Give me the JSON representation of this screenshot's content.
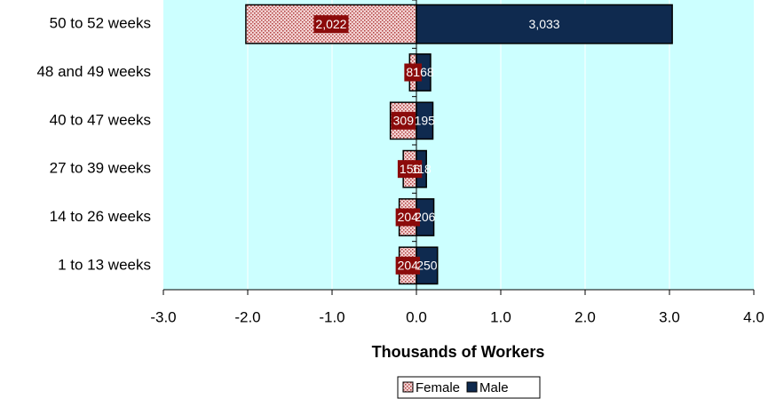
{
  "chart_data": {
    "type": "bar",
    "orientation": "horizontal",
    "categories": [
      "50 to 52 weeks",
      "48 and 49 weeks",
      "40 to 47 weeks",
      "27 to 39 weeks",
      "14 to 26 weeks",
      "1 to 13 weeks"
    ],
    "series": [
      {
        "name": "Female",
        "color": "#f3d3d3",
        "values": [
          -2.022,
          -0.081,
          -0.309,
          -0.156,
          -0.204,
          -0.204
        ],
        "value_labels": [
          "2,022",
          "81",
          "309",
          "156",
          "204",
          "204"
        ]
      },
      {
        "name": "Male",
        "color": "#0f2a4f",
        "values": [
          3.033,
          0.168,
          0.195,
          0.118,
          0.206,
          0.25
        ],
        "value_labels": [
          "3,033",
          "168",
          "195",
          "118",
          "206",
          "250"
        ]
      }
    ],
    "xlabel": "Thousands of Workers",
    "xlim": [
      -3,
      4
    ],
    "xticks": [
      {
        "value": -3,
        "label": "-3.0"
      },
      {
        "value": -2,
        "label": "-2.0"
      },
      {
        "value": -1,
        "label": "-1.0"
      },
      {
        "value": 0,
        "label": "0.0"
      },
      {
        "value": 1,
        "label": "1.0"
      },
      {
        "value": 2,
        "label": "2.0"
      },
      {
        "value": 3,
        "label": "3.0"
      },
      {
        "value": 4,
        "label": "4.0"
      }
    ],
    "grid": true,
    "legend": "bottom"
  }
}
